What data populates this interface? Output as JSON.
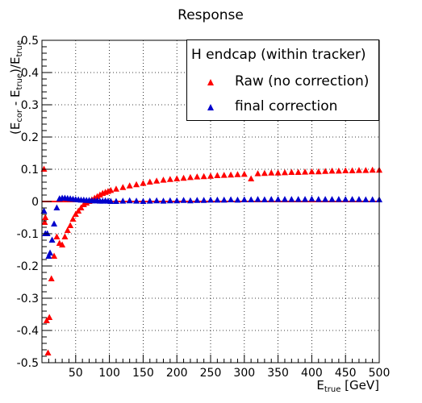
{
  "chart_data": {
    "type": "scatter",
    "title": "Response",
    "xlabel": {
      "main": "E",
      "sub": "true",
      "unit": " [GeV]"
    },
    "ylabel": "(Eₓₑₓ - E_true)/E_true",
    "ylabel_parts": {
      "open": "(E",
      "sub1": "cor",
      "mid": " - E",
      "sub2": "true",
      "close": ")/E",
      "sub3": "true"
    },
    "xlim": [
      0,
      500
    ],
    "ylim": [
      -0.5,
      0.5
    ],
    "xticks": [
      50,
      100,
      150,
      200,
      250,
      300,
      350,
      400,
      450,
      500
    ],
    "yticks": [
      -0.5,
      -0.4,
      -0.3,
      -0.2,
      -0.1,
      0,
      0.1,
      0.2,
      0.3,
      0.4,
      0.5
    ],
    "grid": true,
    "reference_line": {
      "y": 0,
      "color": "#ff0000"
    },
    "legend": {
      "title": "H endcap (within tracker)",
      "placement": "top-right"
    },
    "series": [
      {
        "name": "Raw (no correction)",
        "color": "#ff0000",
        "marker": "triangle-up",
        "x": [
          3,
          4,
          5,
          7,
          9,
          11,
          14,
          18,
          22,
          26,
          30,
          34,
          38,
          42,
          46,
          50,
          54,
          58,
          62,
          66,
          70,
          74,
          78,
          82,
          86,
          90,
          94,
          98,
          102,
          110,
          120,
          130,
          140,
          150,
          160,
          170,
          180,
          190,
          200,
          210,
          220,
          230,
          240,
          250,
          260,
          270,
          280,
          290,
          300,
          310,
          320,
          330,
          340,
          350,
          360,
          370,
          380,
          390,
          400,
          410,
          420,
          430,
          440,
          450,
          460,
          470,
          480,
          490,
          500
        ],
        "y": [
          0.1,
          -0.065,
          -0.05,
          -0.37,
          -0.47,
          -0.36,
          -0.24,
          -0.17,
          -0.11,
          -0.13,
          -0.135,
          -0.11,
          -0.09,
          -0.075,
          -0.055,
          -0.04,
          -0.03,
          -0.02,
          -0.01,
          -0.005,
          0.0,
          0.005,
          0.01,
          0.015,
          0.02,
          0.025,
          0.028,
          0.031,
          0.034,
          0.038,
          0.043,
          0.048,
          0.052,
          0.056,
          0.06,
          0.063,
          0.066,
          0.068,
          0.07,
          0.072,
          0.074,
          0.076,
          0.077,
          0.078,
          0.08,
          0.081,
          0.082,
          0.083,
          0.084,
          0.07,
          0.086,
          0.087,
          0.088,
          0.088,
          0.089,
          0.09,
          0.09,
          0.091,
          0.092,
          0.092,
          0.093,
          0.094,
          0.094,
          0.095,
          0.095,
          0.096,
          0.096,
          0.097,
          0.097
        ]
      },
      {
        "name": "final correction",
        "color": "#0000cc",
        "marker": "triangle-up",
        "x": [
          3,
          5,
          8,
          10,
          12,
          15,
          18,
          22,
          26,
          30,
          34,
          38,
          42,
          46,
          50,
          54,
          58,
          62,
          66,
          70,
          74,
          78,
          82,
          86,
          90,
          94,
          98,
          102,
          110,
          120,
          130,
          140,
          150,
          160,
          170,
          180,
          190,
          200,
          210,
          220,
          230,
          240,
          250,
          260,
          270,
          280,
          290,
          300,
          310,
          320,
          330,
          340,
          350,
          360,
          370,
          380,
          390,
          400,
          410,
          420,
          430,
          440,
          450,
          460,
          470,
          480,
          490,
          500
        ],
        "y": [
          -0.03,
          -0.1,
          -0.1,
          -0.17,
          -0.16,
          -0.12,
          -0.07,
          -0.02,
          0.008,
          0.01,
          0.01,
          0.009,
          0.008,
          0.007,
          0.006,
          0.005,
          0.004,
          0.004,
          0.003,
          0.003,
          0.002,
          0.002,
          0.002,
          0.001,
          0.001,
          0.002,
          0.001,
          0.0,
          0.0,
          0.001,
          0.002,
          0.001,
          0.0,
          0.001,
          0.002,
          0.001,
          0.002,
          0.002,
          0.003,
          0.002,
          0.003,
          0.003,
          0.004,
          0.004,
          0.004,
          0.005,
          0.004,
          0.005,
          0.005,
          0.006,
          0.005,
          0.006,
          0.006,
          0.006,
          0.006,
          0.006,
          0.006,
          0.007,
          0.006,
          0.006,
          0.006,
          0.006,
          0.006,
          0.006,
          0.006,
          0.005,
          0.005,
          0.005
        ]
      }
    ]
  }
}
